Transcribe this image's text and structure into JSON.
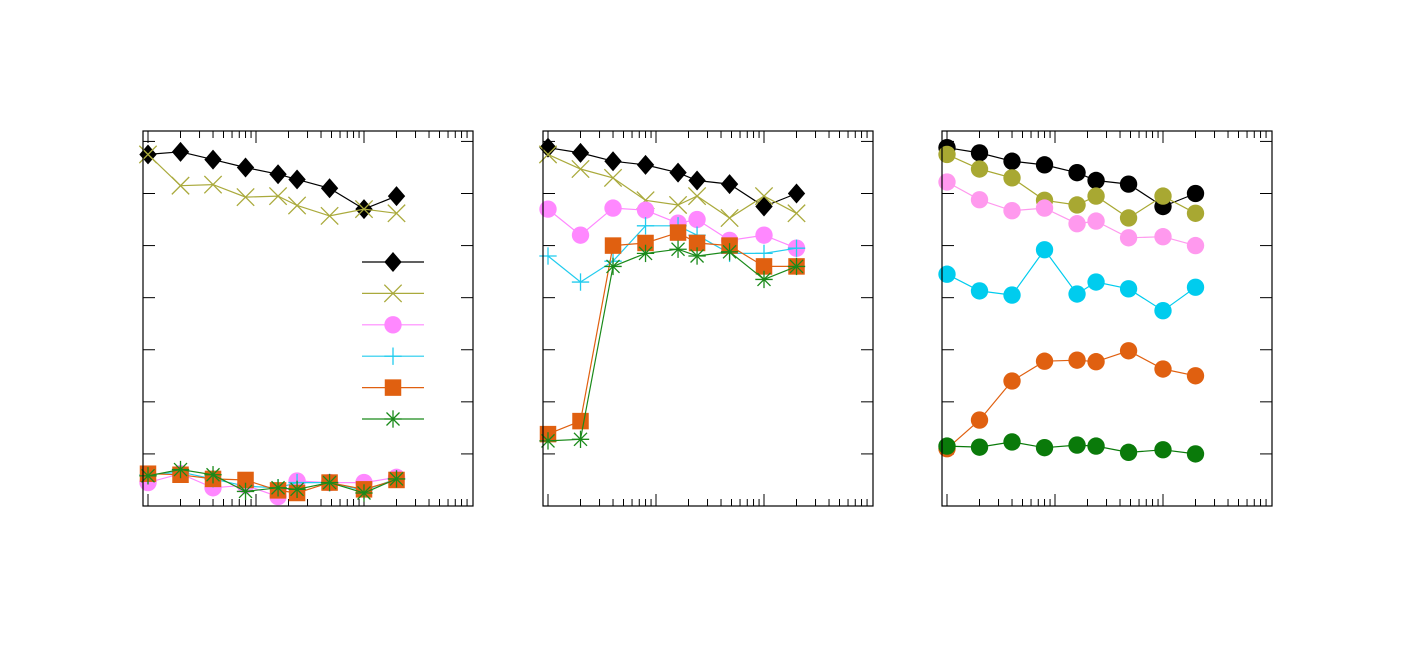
{
  "figure": {
    "background": "#ffffff",
    "frame_color": "#000000"
  },
  "chart_data": [
    {
      "type": "line",
      "title": "",
      "xlabel": "",
      "ylabel": "",
      "xscale": "log",
      "xlim": [
        1,
        1000
      ],
      "ylim": [
        0,
        7.2
      ],
      "x": [
        1,
        2,
        4,
        8,
        16,
        24,
        48,
        100,
        200
      ],
      "legend": {
        "placement": "center-right",
        "entries": [
          "",
          "",
          "",
          "",
          "",
          ""
        ]
      },
      "series": [
        {
          "values": [
            6.75,
            6.8,
            6.65,
            6.5,
            6.37,
            6.27,
            6.1,
            5.7,
            5.95
          ],
          "color": "#000000",
          "marker": "diamond"
        },
        {
          "values": [
            6.75,
            6.15,
            6.17,
            5.93,
            5.95,
            5.77,
            5.57,
            5.7,
            5.62
          ],
          "color": "#aaaa3c",
          "marker": "x"
        },
        {
          "values": [
            0.45,
            0.62,
            0.35,
            0.4,
            0.18,
            0.48,
            0.45,
            0.45,
            0.55
          ],
          "color": "#ff88ff",
          "marker": "circle"
        },
        {
          "values": [
            0.6,
            0.65,
            0.52,
            0.38,
            0.35,
            0.45,
            0.45,
            0.3,
            0.52
          ],
          "color": "#22ccee",
          "marker": "plus"
        },
        {
          "values": [
            0.62,
            0.6,
            0.52,
            0.5,
            0.3,
            0.25,
            0.45,
            0.32,
            0.5
          ],
          "color": "#e06010",
          "marker": "square"
        },
        {
          "values": [
            0.58,
            0.7,
            0.6,
            0.28,
            0.35,
            0.32,
            0.45,
            0.25,
            0.52
          ],
          "color": "#1a8a1a",
          "marker": "star"
        }
      ]
    },
    {
      "type": "line",
      "title": "",
      "xlabel": "",
      "ylabel": "",
      "xscale": "log",
      "xlim": [
        1,
        1000
      ],
      "ylim": [
        0,
        7.2
      ],
      "x": [
        1,
        2,
        4,
        8,
        16,
        24,
        48,
        100,
        200
      ],
      "series": [
        {
          "values": [
            6.88,
            6.78,
            6.62,
            6.55,
            6.4,
            6.25,
            6.18,
            5.75,
            6.0
          ],
          "color": "#000000",
          "marker": "diamond"
        },
        {
          "values": [
            6.75,
            6.47,
            6.3,
            5.87,
            5.78,
            5.95,
            5.53,
            5.95,
            5.62
          ],
          "color": "#aaaa3c",
          "marker": "x"
        },
        {
          "values": [
            5.7,
            5.2,
            5.72,
            5.68,
            5.43,
            5.5,
            5.1,
            5.2,
            4.95
          ],
          "color": "#ff88ff",
          "marker": "circle"
        },
        {
          "values": [
            4.8,
            4.3,
            4.7,
            5.38,
            5.38,
            5.2,
            4.85,
            4.85,
            4.95
          ],
          "color": "#22ccee",
          "marker": "plus"
        },
        {
          "values": [
            1.38,
            1.63,
            5.0,
            5.05,
            5.25,
            5.05,
            5.0,
            4.6,
            4.6
          ],
          "color": "#e06010",
          "marker": "square"
        },
        {
          "values": [
            1.25,
            1.28,
            4.6,
            4.85,
            4.93,
            4.8,
            4.88,
            4.35,
            4.6
          ],
          "color": "#1a8a1a",
          "marker": "star"
        }
      ]
    },
    {
      "type": "line",
      "title": "",
      "xlabel": "",
      "ylabel": "",
      "xscale": "log",
      "xlim": [
        1,
        1000
      ],
      "ylim": [
        0,
        7.2
      ],
      "x": [
        1,
        2,
        4,
        8,
        16,
        24,
        48,
        100,
        200
      ],
      "series": [
        {
          "values": [
            6.88,
            6.78,
            6.62,
            6.55,
            6.4,
            6.25,
            6.18,
            5.75,
            6.0
          ],
          "color": "#000000",
          "marker": "circle"
        },
        {
          "values": [
            6.75,
            6.47,
            6.3,
            5.87,
            5.78,
            5.95,
            5.53,
            5.95,
            5.62
          ],
          "color": "#a8a832",
          "marker": "circle"
        },
        {
          "values": [
            6.22,
            5.88,
            5.67,
            5.72,
            5.42,
            5.47,
            5.15,
            5.17,
            5.0
          ],
          "color": "#ff99ee",
          "marker": "circle"
        },
        {
          "values": [
            4.45,
            4.13,
            4.05,
            4.92,
            4.07,
            4.3,
            4.17,
            3.75,
            4.2
          ],
          "color": "#00ccee",
          "marker": "circle"
        },
        {
          "values": [
            1.1,
            1.65,
            2.4,
            2.78,
            2.8,
            2.77,
            2.98,
            2.63,
            2.5
          ],
          "color": "#e06010",
          "marker": "circle"
        },
        {
          "values": [
            1.15,
            1.13,
            1.23,
            1.12,
            1.17,
            1.15,
            1.03,
            1.08,
            1.0
          ],
          "color": "#0a7a0a",
          "marker": "circle"
        }
      ]
    }
  ]
}
